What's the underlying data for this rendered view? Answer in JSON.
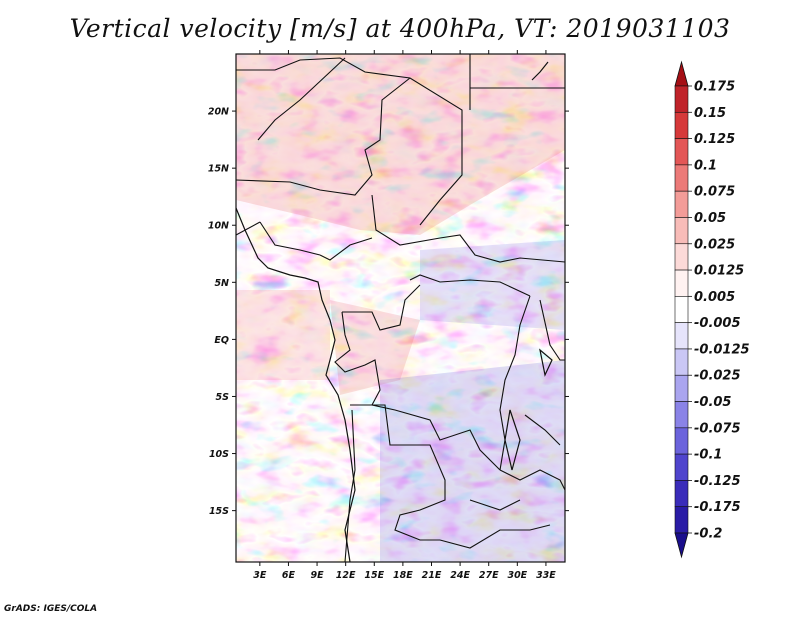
{
  "title": "Vertical velocity [m/s] at 400hPa, VT: 2019031103",
  "credit": "GrADS: IGES/COLA",
  "map": {
    "lat_labels": [
      "20N",
      "15N",
      "10N",
      "5N",
      "EQ",
      "5S",
      "10S",
      "15S"
    ],
    "lon_labels": [
      "3E",
      "6E",
      "9E",
      "12E",
      "15E",
      "18E",
      "21E",
      "24E",
      "27E",
      "30E",
      "33E"
    ],
    "lat_values": [
      20,
      15,
      10,
      5,
      0,
      -5,
      -10,
      -15
    ],
    "lon_values": [
      3,
      6,
      9,
      12,
      15,
      18,
      21,
      24,
      27,
      30,
      33
    ],
    "lon_range": [
      0.5,
      35
    ],
    "lat_range": [
      -19.5,
      25
    ],
    "field_description_colors": {
      "ascent": "#d63a3a",
      "descent": "#6a64e0",
      "neutral": "#ffffff"
    }
  },
  "colorbar": {
    "labels": [
      "0.175",
      "0.15",
      "0.125",
      "0.1",
      "0.075",
      "0.05",
      "0.025",
      "0.0125",
      "0.005",
      "-0.005",
      "-0.0125",
      "-0.025",
      "-0.05",
      "-0.075",
      "-0.1",
      "-0.125",
      "-0.175",
      "-0.2"
    ],
    "colors": [
      "#a50f15",
      "#c0232a",
      "#d6393a",
      "#e35656",
      "#ec7a78",
      "#f39c98",
      "#f8bcb8",
      "#fcdad8",
      "#fff2f1",
      "#ffffff",
      "#e6e4fb",
      "#cac7f5",
      "#aaa5ef",
      "#8a83e7",
      "#6b63dc",
      "#4f44cd",
      "#3a2cba",
      "#2a1ca6",
      "#1a0e8c"
    ]
  }
}
